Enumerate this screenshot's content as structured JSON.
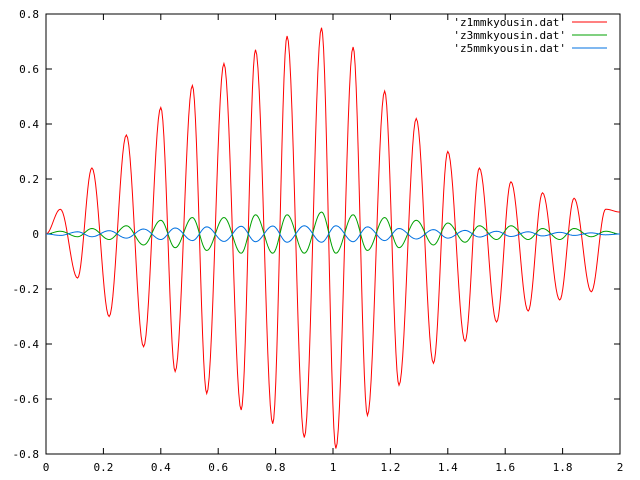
{
  "chart_data": {
    "type": "line",
    "title": "",
    "xlabel": "",
    "ylabel": "",
    "xlim": [
      0,
      2
    ],
    "ylim": [
      -0.8,
      0.8
    ],
    "xticks": [
      0,
      0.2,
      0.4,
      0.6,
      0.8,
      1,
      1.2,
      1.4,
      1.6,
      1.8,
      2
    ],
    "xtick_labels": [
      "0",
      "0.2",
      "0.4",
      "0.6",
      "0.8",
      "1",
      "1.2",
      "1.4",
      "1.6",
      "1.8",
      "2"
    ],
    "yticks": [
      -0.8,
      -0.6,
      -0.4,
      -0.2,
      0,
      0.2,
      0.4,
      0.6,
      0.8
    ],
    "ytick_labels": [
      "-0.8",
      "-0.6",
      "-0.4",
      "-0.2",
      "0",
      "0.2",
      "0.4",
      "0.6",
      "0.8"
    ],
    "grid": false,
    "legend_position": "top-right",
    "series": [
      {
        "name": "'z1mmkyousin.dat'",
        "color": "#ff0000",
        "x": [
          0,
          0.05,
          0.11,
          0.16,
          0.22,
          0.28,
          0.34,
          0.4,
          0.45,
          0.51,
          0.56,
          0.62,
          0.68,
          0.73,
          0.79,
          0.84,
          0.9,
          0.96,
          1.01,
          1.07,
          1.12,
          1.18,
          1.23,
          1.29,
          1.35,
          1.4,
          1.46,
          1.51,
          1.57,
          1.62,
          1.68,
          1.73,
          1.79,
          1.84,
          1.9,
          1.95,
          2.0
        ],
        "y": [
          0,
          0.09,
          -0.16,
          0.24,
          -0.3,
          0.36,
          -0.41,
          0.46,
          -0.5,
          0.54,
          -0.58,
          0.62,
          -0.64,
          0.67,
          -0.69,
          0.72,
          -0.74,
          0.75,
          -0.78,
          0.68,
          -0.66,
          0.52,
          -0.55,
          0.42,
          -0.47,
          0.3,
          -0.39,
          0.24,
          -0.32,
          0.19,
          -0.28,
          0.15,
          -0.24,
          0.13,
          -0.21,
          0.09,
          0.08
        ]
      },
      {
        "name": "'z3mmkyousin.dat'",
        "color": "#00a000",
        "x": [
          0,
          0.05,
          0.11,
          0.16,
          0.22,
          0.28,
          0.34,
          0.4,
          0.45,
          0.51,
          0.56,
          0.62,
          0.68,
          0.73,
          0.79,
          0.84,
          0.9,
          0.96,
          1.01,
          1.07,
          1.12,
          1.18,
          1.23,
          1.29,
          1.35,
          1.4,
          1.46,
          1.51,
          1.57,
          1.62,
          1.68,
          1.73,
          1.79,
          1.84,
          1.9,
          1.95,
          2.0
        ],
        "y": [
          0,
          0.01,
          -0.01,
          0.02,
          -0.02,
          0.03,
          -0.04,
          0.05,
          -0.05,
          0.06,
          -0.06,
          0.06,
          -0.07,
          0.07,
          -0.07,
          0.07,
          -0.07,
          0.08,
          -0.07,
          0.07,
          -0.06,
          0.06,
          -0.05,
          0.05,
          -0.04,
          0.04,
          -0.03,
          0.03,
          -0.02,
          0.03,
          -0.02,
          0.02,
          -0.02,
          0.02,
          -0.01,
          0.01,
          0
        ]
      },
      {
        "name": "'z5mmkyousin.dat'",
        "color": "#0070e0",
        "x": [
          0,
          0.05,
          0.11,
          0.16,
          0.22,
          0.28,
          0.34,
          0.4,
          0.45,
          0.51,
          0.56,
          0.62,
          0.68,
          0.73,
          0.79,
          0.84,
          0.9,
          0.96,
          1.01,
          1.07,
          1.12,
          1.18,
          1.23,
          1.29,
          1.35,
          1.4,
          1.46,
          1.51,
          1.57,
          1.62,
          1.68,
          1.73,
          1.79,
          1.84,
          1.9,
          1.95,
          2.0
        ],
        "y": [
          0,
          -0.005,
          0.008,
          -0.01,
          0.012,
          -0.015,
          0.018,
          -0.02,
          0.022,
          -0.024,
          0.026,
          -0.027,
          0.028,
          -0.028,
          0.029,
          -0.03,
          0.03,
          -0.03,
          0.03,
          -0.028,
          0.026,
          -0.024,
          0.02,
          -0.018,
          0.016,
          -0.015,
          0.013,
          -0.011,
          0.01,
          -0.009,
          0.008,
          -0.007,
          0.006,
          -0.005,
          0.004,
          -0.003,
          0
        ]
      }
    ]
  }
}
